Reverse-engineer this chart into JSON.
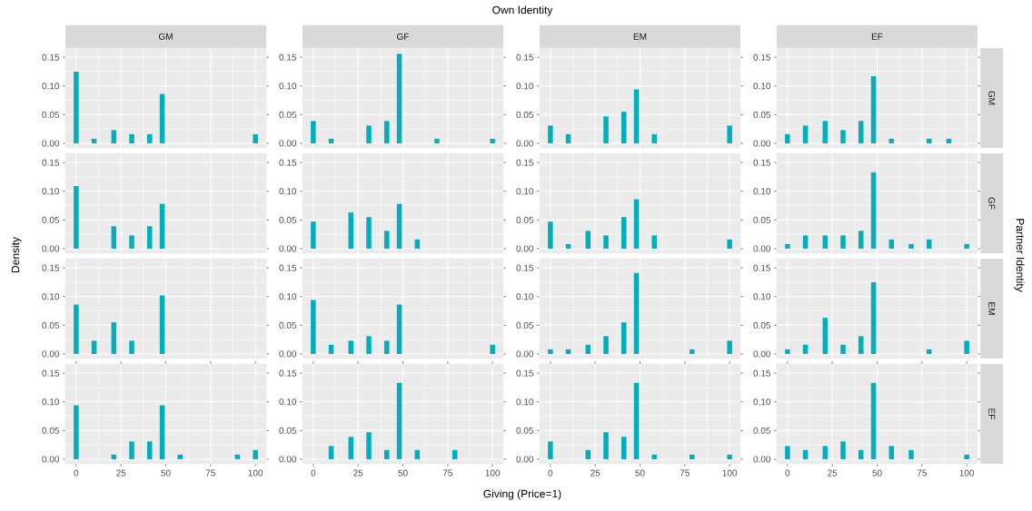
{
  "chart_data": [
    {
      "type": "bar",
      "title": "GM",
      "x": [
        0,
        10,
        21,
        31,
        41,
        48,
        100
      ],
      "values": [
        0.125,
        0.008,
        0.023,
        0.016,
        0.016,
        0.086,
        0.016
      ],
      "color": "#00afbb",
      "xlim": [
        -6,
        106
      ],
      "ylim": [
        -0.008,
        0.166
      ],
      "xticks": [
        0,
        25,
        50,
        75,
        100
      ],
      "yticks": [
        {
          "value": 0,
          "label": "0.00"
        },
        {
          "value": 0.05,
          "label": "0.05"
        },
        {
          "value": 0.1,
          "label": "0.10"
        },
        {
          "value": 0.15,
          "label": "0.15"
        }
      ],
      "grid": true,
      "tick_labels": "y"
    },
    {
      "type": "bar",
      "title": "GF",
      "x": [
        0,
        10,
        31,
        41,
        48,
        69,
        100
      ],
      "values": [
        0.039,
        0.008,
        0.031,
        0.039,
        0.156,
        0.008,
        0.008
      ],
      "color": "#00afbb",
      "xlim": [
        -6,
        106
      ],
      "ylim": [
        -0.008,
        0.166
      ],
      "xticks": [
        0,
        25,
        50,
        75,
        100
      ],
      "yticks": [
        {
          "value": 0,
          "label": "0.00"
        },
        {
          "value": 0.05,
          "label": "0.05"
        },
        {
          "value": 0.1,
          "label": "0.10"
        },
        {
          "value": 0.15,
          "label": "0.15"
        }
      ],
      "grid": true,
      "tick_labels": "y"
    },
    {
      "type": "bar",
      "title": "EM",
      "x": [
        0,
        10,
        31,
        41,
        48,
        58,
        100
      ],
      "values": [
        0.031,
        0.016,
        0.047,
        0.055,
        0.094,
        0.016,
        0.031
      ],
      "color": "#00afbb",
      "xlim": [
        -6,
        106
      ],
      "ylim": [
        -0.008,
        0.166
      ],
      "xticks": [
        0,
        25,
        50,
        75,
        100
      ],
      "yticks": [
        {
          "value": 0,
          "label": "0.00"
        },
        {
          "value": 0.05,
          "label": "0.05"
        },
        {
          "value": 0.1,
          "label": "0.10"
        },
        {
          "value": 0.15,
          "label": "0.15"
        }
      ],
      "grid": true,
      "tick_labels": "y"
    },
    {
      "type": "bar",
      "title": "EF",
      "y2label": "GM",
      "x": [
        0,
        10,
        21,
        31,
        41,
        48,
        58,
        79,
        90
      ],
      "values": [
        0.016,
        0.031,
        0.039,
        0.023,
        0.039,
        0.117,
        0.008,
        0.008,
        0.008
      ],
      "color": "#00afbb",
      "xlim": [
        -6,
        106
      ],
      "ylim": [
        -0.008,
        0.166
      ],
      "xticks": [
        0,
        25,
        50,
        75,
        100
      ],
      "yticks": [
        {
          "value": 0,
          "label": "0.00"
        },
        {
          "value": 0.05,
          "label": "0.05"
        },
        {
          "value": 0.1,
          "label": "0.10"
        },
        {
          "value": 0.15,
          "label": "0.15"
        }
      ],
      "grid": true,
      "tick_labels": "y"
    },
    {
      "type": "bar",
      "x": [
        0,
        21,
        31,
        41,
        48
      ],
      "values": [
        0.109,
        0.039,
        0.023,
        0.039,
        0.078
      ],
      "color": "#00afbb",
      "xlim": [
        -6,
        106
      ],
      "ylim": [
        -0.008,
        0.166
      ],
      "xticks": [
        0,
        25,
        50,
        75,
        100
      ],
      "yticks": [
        {
          "value": 0,
          "label": "0.00"
        },
        {
          "value": 0.05,
          "label": "0.05"
        },
        {
          "value": 0.1,
          "label": "0.10"
        },
        {
          "value": 0.15,
          "label": "0.15"
        }
      ],
      "grid": true,
      "tick_labels": "y"
    },
    {
      "type": "bar",
      "x": [
        0,
        21,
        31,
        41,
        48,
        58
      ],
      "values": [
        0.047,
        0.063,
        0.055,
        0.031,
        0.078,
        0.016
      ],
      "color": "#00afbb",
      "xlim": [
        -6,
        106
      ],
      "ylim": [
        -0.008,
        0.166
      ],
      "xticks": [
        0,
        25,
        50,
        75,
        100
      ],
      "yticks": [
        {
          "value": 0,
          "label": "0.00"
        },
        {
          "value": 0.05,
          "label": "0.05"
        },
        {
          "value": 0.1,
          "label": "0.10"
        },
        {
          "value": 0.15,
          "label": "0.15"
        }
      ],
      "grid": true,
      "tick_labels": "y"
    },
    {
      "type": "bar",
      "x": [
        0,
        10,
        21,
        31,
        41,
        48,
        58,
        100
      ],
      "values": [
        0.047,
        0.008,
        0.031,
        0.023,
        0.055,
        0.086,
        0.023,
        0.016
      ],
      "color": "#00afbb",
      "xlim": [
        -6,
        106
      ],
      "ylim": [
        -0.008,
        0.166
      ],
      "xticks": [
        0,
        25,
        50,
        75,
        100
      ],
      "yticks": [
        {
          "value": 0,
          "label": "0.00"
        },
        {
          "value": 0.05,
          "label": "0.05"
        },
        {
          "value": 0.1,
          "label": "0.10"
        },
        {
          "value": 0.15,
          "label": "0.15"
        }
      ],
      "grid": true,
      "tick_labels": "y"
    },
    {
      "type": "bar",
      "y2label": "GF",
      "x": [
        0,
        10,
        21,
        31,
        41,
        48,
        58,
        69,
        79,
        100
      ],
      "values": [
        0.008,
        0.023,
        0.023,
        0.023,
        0.031,
        0.133,
        0.016,
        0.008,
        0.016,
        0.008
      ],
      "color": "#00afbb",
      "xlim": [
        -6,
        106
      ],
      "ylim": [
        -0.008,
        0.166
      ],
      "xticks": [
        0,
        25,
        50,
        75,
        100
      ],
      "yticks": [
        {
          "value": 0,
          "label": "0.00"
        },
        {
          "value": 0.05,
          "label": "0.05"
        },
        {
          "value": 0.1,
          "label": "0.10"
        },
        {
          "value": 0.15,
          "label": "0.15"
        }
      ],
      "grid": true,
      "tick_labels": "y"
    },
    {
      "type": "bar",
      "x": [
        0,
        10,
        21,
        31,
        48
      ],
      "values": [
        0.086,
        0.023,
        0.055,
        0.023,
        0.102
      ],
      "color": "#00afbb",
      "xlim": [
        -6,
        106
      ],
      "ylim": [
        -0.008,
        0.166
      ],
      "xticks": [
        0,
        25,
        50,
        75,
        100
      ],
      "yticks": [
        {
          "value": 0,
          "label": "0.00"
        },
        {
          "value": 0.05,
          "label": "0.05"
        },
        {
          "value": 0.1,
          "label": "0.10"
        },
        {
          "value": 0.15,
          "label": "0.15"
        }
      ],
      "grid": true,
      "tick_labels": "y"
    },
    {
      "type": "bar",
      "x": [
        0,
        10,
        21,
        31,
        41,
        48,
        100
      ],
      "values": [
        0.094,
        0.016,
        0.023,
        0.031,
        0.023,
        0.086,
        0.016
      ],
      "color": "#00afbb",
      "xlim": [
        -6,
        106
      ],
      "ylim": [
        -0.008,
        0.166
      ],
      "xticks": [
        0,
        25,
        50,
        75,
        100
      ],
      "yticks": [
        {
          "value": 0,
          "label": "0.00"
        },
        {
          "value": 0.05,
          "label": "0.05"
        },
        {
          "value": 0.1,
          "label": "0.10"
        },
        {
          "value": 0.15,
          "label": "0.15"
        }
      ],
      "grid": true,
      "tick_labels": "y"
    },
    {
      "type": "bar",
      "x": [
        0,
        10,
        21,
        31,
        41,
        48,
        79,
        100
      ],
      "values": [
        0.008,
        0.008,
        0.016,
        0.031,
        0.055,
        0.141,
        0.008,
        0.023
      ],
      "color": "#00afbb",
      "xlim": [
        -6,
        106
      ],
      "ylim": [
        -0.008,
        0.166
      ],
      "xticks": [
        0,
        25,
        50,
        75,
        100
      ],
      "yticks": [
        {
          "value": 0,
          "label": "0.00"
        },
        {
          "value": 0.05,
          "label": "0.05"
        },
        {
          "value": 0.1,
          "label": "0.10"
        },
        {
          "value": 0.15,
          "label": "0.15"
        }
      ],
      "grid": true,
      "tick_labels": "y"
    },
    {
      "type": "bar",
      "y2label": "EM",
      "x": [
        0,
        10,
        21,
        31,
        41,
        48,
        79,
        100
      ],
      "values": [
        0.008,
        0.016,
        0.063,
        0.016,
        0.031,
        0.125,
        0.008,
        0.023
      ],
      "color": "#00afbb",
      "xlim": [
        -6,
        106
      ],
      "ylim": [
        -0.008,
        0.166
      ],
      "xticks": [
        0,
        25,
        50,
        75,
        100
      ],
      "yticks": [
        {
          "value": 0,
          "label": "0.00"
        },
        {
          "value": 0.05,
          "label": "0.05"
        },
        {
          "value": 0.1,
          "label": "0.10"
        },
        {
          "value": 0.15,
          "label": "0.15"
        }
      ],
      "grid": true,
      "tick_labels": "y"
    },
    {
      "type": "bar",
      "x": [
        0,
        21,
        31,
        41,
        48,
        58,
        90,
        100
      ],
      "values": [
        0.094,
        0.008,
        0.031,
        0.031,
        0.094,
        0.008,
        0.008,
        0.016
      ],
      "color": "#00afbb",
      "xlim": [
        -6,
        106
      ],
      "ylim": [
        -0.008,
        0.166
      ],
      "xticks": [
        0,
        25,
        50,
        75,
        100
      ],
      "yticks": [
        {
          "value": 0,
          "label": "0.00"
        },
        {
          "value": 0.05,
          "label": "0.05"
        },
        {
          "value": 0.1,
          "label": "0.10"
        },
        {
          "value": 0.15,
          "label": "0.15"
        }
      ],
      "grid": true
    },
    {
      "type": "bar",
      "x": [
        10,
        21,
        31,
        41,
        48,
        58,
        79
      ],
      "values": [
        0.023,
        0.039,
        0.047,
        0.016,
        0.133,
        0.016,
        0.016
      ],
      "color": "#00afbb",
      "xlim": [
        -6,
        106
      ],
      "ylim": [
        -0.008,
        0.166
      ],
      "xticks": [
        0,
        25,
        50,
        75,
        100
      ],
      "yticks": [
        {
          "value": 0,
          "label": "0.00"
        },
        {
          "value": 0.05,
          "label": "0.05"
        },
        {
          "value": 0.1,
          "label": "0.10"
        },
        {
          "value": 0.15,
          "label": "0.15"
        }
      ],
      "grid": true
    },
    {
      "type": "bar",
      "x": [
        0,
        21,
        31,
        41,
        48,
        58,
        79,
        100
      ],
      "values": [
        0.031,
        0.016,
        0.047,
        0.039,
        0.133,
        0.008,
        0.008,
        0.008
      ],
      "color": "#00afbb",
      "xlim": [
        -6,
        106
      ],
      "ylim": [
        -0.008,
        0.166
      ],
      "xticks": [
        0,
        25,
        50,
        75,
        100
      ],
      "yticks": [
        {
          "value": 0,
          "label": "0.00"
        },
        {
          "value": 0.05,
          "label": "0.05"
        },
        {
          "value": 0.1,
          "label": "0.10"
        },
        {
          "value": 0.15,
          "label": "0.15"
        }
      ],
      "grid": true
    },
    {
      "type": "bar",
      "y2label": "EF",
      "x": [
        0,
        10,
        21,
        31,
        41,
        48,
        58,
        69,
        100
      ],
      "values": [
        0.023,
        0.016,
        0.023,
        0.031,
        0.016,
        0.133,
        0.023,
        0.016,
        0.008
      ],
      "color": "#00afbb",
      "xlim": [
        -6,
        106
      ],
      "ylim": [
        -0.008,
        0.166
      ],
      "xticks": [
        0,
        25,
        50,
        75,
        100
      ],
      "yticks": [
        {
          "value": 0,
          "label": "0.00"
        },
        {
          "value": 0.05,
          "label": "0.05"
        },
        {
          "value": 0.1,
          "label": "0.10"
        },
        {
          "value": 0.15,
          "label": "0.15"
        }
      ],
      "grid": true
    },
    {
      "type": "other",
      "title": "Own Identity",
      "xlabel": "Giving (Price=1)",
      "ylabel": "Density",
      "y2label": "Partner Identity"
    }
  ]
}
